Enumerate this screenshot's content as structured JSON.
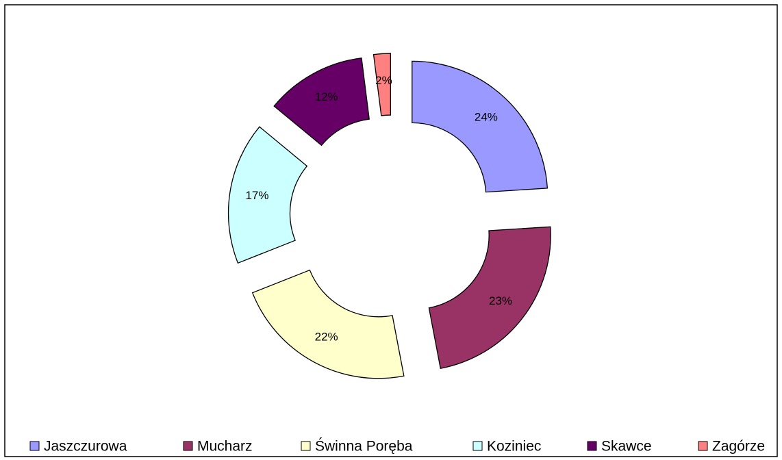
{
  "chart_data": {
    "type": "donut",
    "categories": [
      "Jaszczurowa",
      "Mucharz",
      "Świnna Poręba",
      "Koziniec",
      "Skawce",
      "Zagórze"
    ],
    "values": [
      24,
      23,
      22,
      17,
      12,
      2
    ],
    "value_labels": [
      "24%",
      "23%",
      "22%",
      "17%",
      "12%",
      "2%"
    ],
    "colors": [
      "#9999ff",
      "#993366",
      "#ffffcc",
      "#ccffff",
      "#660066",
      "#ff8080"
    ],
    "legend": "bottom"
  }
}
